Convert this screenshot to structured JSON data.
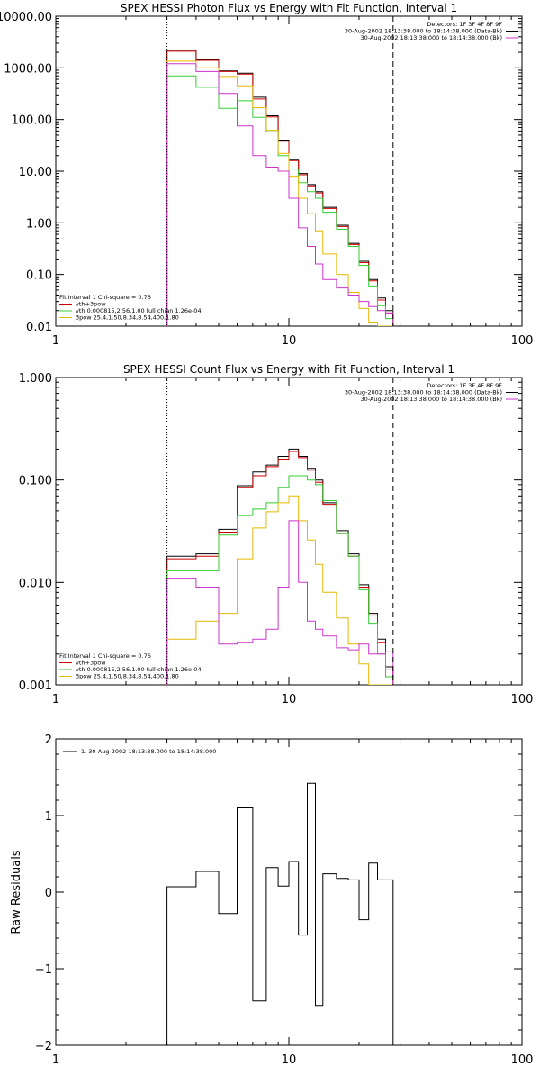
{
  "chart_data": [
    {
      "type": "line",
      "title": "SPEX HESSI Photon Flux vs Energy with Fit Function, Interval 1",
      "ylabel": "",
      "xscale": "log",
      "yscale": "log",
      "xlim": [
        1,
        100
      ],
      "ylim": [
        0.01,
        10000
      ],
      "x_ticks": [
        "1",
        "10",
        "100"
      ],
      "y_ticks": [
        "0.01",
        "0.10",
        "1.00",
        "10.00",
        "100.00",
        "1000.00",
        "10000.00"
      ],
      "y_tick_values": [
        0.01,
        0.1,
        1,
        10,
        100,
        1000,
        10000
      ],
      "vlines": [
        {
          "x": 3.0,
          "style": "dotted"
        },
        {
          "x": 28.0,
          "style": "dashed"
        }
      ],
      "legend_tr": [
        {
          "text": "Detectors: 1F 3F 4F 8F 9F",
          "color": ""
        },
        {
          "text": "30-Aug-2002 18:13:38.000 to 18:14:38.000 (Data-Bk)",
          "color": "#000000"
        },
        {
          "text": "30-Aug-2002 18:13:38.000 to 18:14:38.000 (Bk)",
          "color": "#cc33cc"
        }
      ],
      "legend_bl": [
        {
          "text": "Fit Interval 1   Chi-square = 0.76",
          "color": ""
        },
        {
          "text": "vth+3pow",
          "color": "#cc0000"
        },
        {
          "text": "vth 0.000815,2.56,1.00  full chian 1.26e-04",
          "color": "#33cc33"
        },
        {
          "text": "3pow 25.4,1.50,8.34,8.54,400,1.80",
          "color": "#e6b800"
        }
      ],
      "bin_edges": [
        3.0,
        4.0,
        5.0,
        6.0,
        7.0,
        8.0,
        9.0,
        10.0,
        11.0,
        12.0,
        13.0,
        14.0,
        16.0,
        18.0,
        20.0,
        22.0,
        24.0,
        26.0,
        28.0
      ],
      "series": [
        {
          "name": "",
          "color": "#000000",
          "values": [
            2200,
            1450,
            870,
            790,
            270,
            118,
            40,
            17,
            9.0,
            5.5,
            4.0,
            2.0,
            0.9,
            0.4,
            0.18,
            0.08,
            0.035,
            0.02
          ]
        },
        {
          "name": "",
          "color": "#cc0000",
          "values": [
            2100,
            1400,
            850,
            760,
            250,
            112,
            38,
            16,
            8.5,
            5.2,
            3.8,
            1.9,
            0.85,
            0.38,
            0.17,
            0.075,
            0.032,
            0.018
          ]
        },
        {
          "name": "",
          "color": "#33cc33",
          "values": [
            700,
            420,
            165,
            230,
            110,
            58,
            20,
            11,
            6.0,
            4.0,
            3.0,
            1.6,
            0.75,
            0.35,
            0.15,
            0.06,
            0.025,
            0.014
          ]
        },
        {
          "name": "",
          "color": "#e6b800",
          "values": [
            1350,
            1000,
            680,
            450,
            170,
            62,
            22,
            8.0,
            3.0,
            1.5,
            0.7,
            0.25,
            0.1,
            0.045,
            0.022,
            0.012,
            0.01,
            0.01
          ]
        },
        {
          "name": "",
          "color": "#cc33cc",
          "values": [
            1200,
            850,
            320,
            75,
            20,
            12,
            10,
            3.0,
            0.8,
            0.35,
            0.16,
            0.08,
            0.055,
            0.04,
            0.03,
            0.024,
            0.02,
            0.018
          ]
        }
      ]
    },
    {
      "type": "line",
      "title": "SPEX HESSI Count Flux vs Energy with Fit Function, Interval 1",
      "ylabel": "",
      "xscale": "log",
      "yscale": "log",
      "xlim": [
        1,
        100
      ],
      "ylim": [
        0.001,
        1
      ],
      "x_ticks": [
        "1",
        "10",
        "100"
      ],
      "y_ticks": [
        "0.001",
        "0.010",
        "0.100",
        "1.000"
      ],
      "y_tick_values": [
        0.001,
        0.01,
        0.1,
        1
      ],
      "vlines": [
        {
          "x": 3.0,
          "style": "dotted"
        },
        {
          "x": 28.0,
          "style": "dashed"
        }
      ],
      "legend_tr": [
        {
          "text": "Detectors: 1F 3F 4F 8F 9F",
          "color": ""
        },
        {
          "text": "30-Aug-2002 18:13:38.000 to 18:14:38.000 (Data-Bk)",
          "color": "#000000"
        },
        {
          "text": "30-Aug-2002 18:13:38.000 to 18:14:38.000 (Bk)",
          "color": "#cc33cc"
        }
      ],
      "legend_bl": [
        {
          "text": "Fit Interval 1   Chi-square = 0.76",
          "color": ""
        },
        {
          "text": "vth+3pow",
          "color": "#cc0000"
        },
        {
          "text": "vth 0.000815,2.56,1.00  full chian 1.26e-04",
          "color": "#33cc33"
        },
        {
          "text": "3pow 25.4,1.50,8.34,8.54,400,1.80",
          "color": "#e6b800"
        }
      ],
      "bin_edges": [
        3.0,
        4.0,
        5.0,
        6.0,
        7.0,
        8.0,
        9.0,
        10.0,
        11.0,
        12.0,
        13.0,
        14.0,
        16.0,
        18.0,
        20.0,
        22.0,
        24.0,
        26.0,
        28.0
      ],
      "series": [
        {
          "name": "",
          "color": "#000000",
          "values": [
            0.018,
            0.019,
            0.033,
            0.088,
            0.12,
            0.14,
            0.17,
            0.2,
            0.17,
            0.13,
            0.1,
            0.06,
            0.032,
            0.019,
            0.0095,
            0.005,
            0.0028,
            0.0015
          ]
        },
        {
          "name": "",
          "color": "#cc0000",
          "values": [
            0.017,
            0.018,
            0.031,
            0.085,
            0.11,
            0.135,
            0.16,
            0.19,
            0.165,
            0.125,
            0.095,
            0.058,
            0.03,
            0.018,
            0.009,
            0.0048,
            0.0026,
            0.0014
          ]
        },
        {
          "name": "",
          "color": "#33cc33",
          "values": [
            0.013,
            0.013,
            0.029,
            0.045,
            0.052,
            0.06,
            0.085,
            0.11,
            0.11,
            0.1,
            0.09,
            0.063,
            0.03,
            0.018,
            0.0085,
            0.004,
            0.002,
            0.0012
          ]
        },
        {
          "name": "",
          "color": "#e6b800",
          "values": [
            0.0028,
            0.0042,
            0.005,
            0.017,
            0.034,
            0.049,
            0.06,
            0.07,
            0.04,
            0.026,
            0.015,
            0.008,
            0.0045,
            0.0025,
            0.0016,
            0.001,
            0.001,
            0.001
          ]
        },
        {
          "name": "",
          "color": "#cc33cc",
          "values": [
            0.011,
            0.009,
            0.0025,
            0.0026,
            0.0028,
            0.0035,
            0.009,
            0.04,
            0.01,
            0.0042,
            0.0035,
            0.003,
            0.0023,
            0.0022,
            0.0025,
            0.002,
            0.002,
            0.0021
          ]
        }
      ]
    },
    {
      "type": "line",
      "title": "",
      "ylabel": "Raw Residuals",
      "xscale": "log",
      "yscale": "linear",
      "xlim": [
        1,
        100
      ],
      "ylim": [
        -2,
        2
      ],
      "x_ticks": [
        "1",
        "10",
        "100"
      ],
      "y_ticks": [
        "-2",
        "-1",
        "0",
        "1",
        "2"
      ],
      "y_tick_values": [
        -2,
        -1,
        0,
        1,
        2
      ],
      "vlines": [],
      "legend_tl": [
        {
          "text": "1. 30-Aug-2002 18:13:38.000 to 18:14:38.000",
          "color": "#000000"
        }
      ],
      "bin_edges": [
        3.0,
        4.0,
        5.0,
        6.0,
        7.0,
        8.0,
        9.0,
        10.0,
        11.0,
        12.0,
        13.0,
        14.0,
        16.0,
        18.0,
        20.0,
        22.0,
        24.0,
        26.0,
        28.0
      ],
      "series": [
        {
          "name": "",
          "color": "#000000",
          "values": [
            0.07,
            0.27,
            -0.28,
            1.1,
            -1.42,
            0.32,
            0.08,
            0.4,
            -0.56,
            1.42,
            -1.48,
            0.24,
            0.18,
            0.16,
            -0.36,
            0.38,
            0.16,
            0.16
          ]
        }
      ]
    }
  ]
}
